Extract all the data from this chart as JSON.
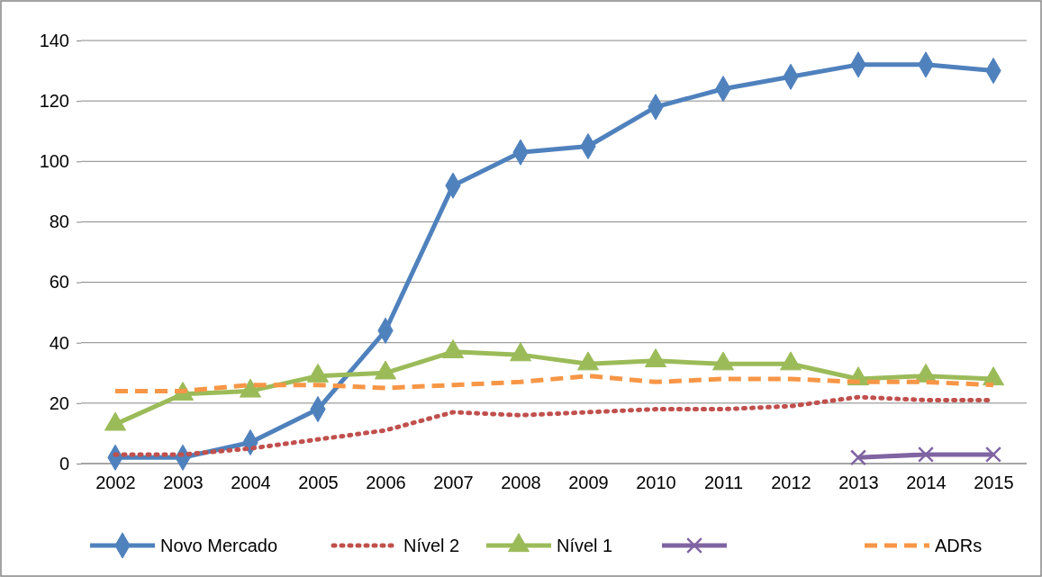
{
  "chart_data": {
    "type": "line",
    "categories": [
      "2002",
      "2003",
      "2004",
      "2005",
      "2006",
      "2007",
      "2008",
      "2009",
      "2010",
      "2011",
      "2012",
      "2013",
      "2014",
      "2015"
    ],
    "ylim": [
      0,
      140
    ],
    "yticks": [
      0,
      20,
      40,
      60,
      80,
      100,
      120,
      140
    ],
    "grid": "y",
    "legend": "bottom",
    "series": [
      {
        "name": "Novo Mercado",
        "color": "#4f81bd",
        "marker": "diamond",
        "line_style": "solid",
        "values": [
          2,
          2,
          7,
          18,
          44,
          92,
          103,
          105,
          118,
          124,
          128,
          132,
          132,
          130
        ]
      },
      {
        "name": "Nível 2",
        "color": "#c0504d",
        "marker": "none",
        "line_style": "dotted",
        "values": [
          3,
          3,
          5,
          8,
          11,
          17,
          16,
          17,
          18,
          18,
          19,
          22,
          21,
          21
        ]
      },
      {
        "name": "Nível 1",
        "color": "#9bbb59",
        "marker": "triangle",
        "line_style": "solid",
        "values": [
          13,
          23,
          24,
          29,
          30,
          37,
          36,
          33,
          34,
          33,
          33,
          28,
          29,
          28
        ]
      },
      {
        "color": "#8064a2",
        "marker": "cross",
        "line_style": "solid",
        "values": [
          null,
          null,
          null,
          null,
          null,
          null,
          null,
          null,
          null,
          null,
          null,
          2,
          3,
          3
        ]
      },
      {
        "name": "ADRs",
        "color": "#f79646",
        "marker": "none",
        "line_style": "dashed",
        "values": [
          24,
          24,
          26,
          26,
          25,
          26,
          27,
          29,
          27,
          28,
          28,
          27,
          27,
          26
        ]
      }
    ]
  }
}
